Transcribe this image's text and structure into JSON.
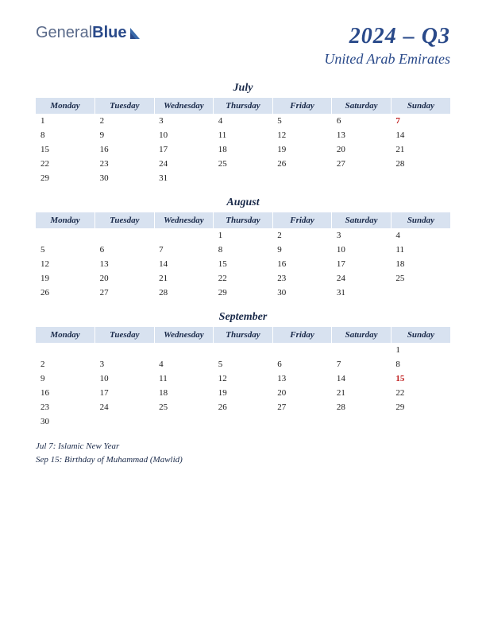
{
  "logo": {
    "part1": "General",
    "part2": "Blue"
  },
  "title": {
    "period": "2024 – Q3",
    "country": "United Arab Emirates"
  },
  "colors": {
    "header_bg": "#d8e2f0",
    "accent": "#2a4a8a",
    "holiday": "#c02020",
    "text": "#1a1a1a",
    "background": "#ffffff"
  },
  "day_headers": [
    "Monday",
    "Tuesday",
    "Wednesday",
    "Thursday",
    "Friday",
    "Saturday",
    "Sunday"
  ],
  "months": [
    {
      "name": "July",
      "weeks": [
        [
          {
            "d": "1"
          },
          {
            "d": "2"
          },
          {
            "d": "3"
          },
          {
            "d": "4"
          },
          {
            "d": "5"
          },
          {
            "d": "6"
          },
          {
            "d": "7",
            "h": true
          }
        ],
        [
          {
            "d": "8"
          },
          {
            "d": "9"
          },
          {
            "d": "10"
          },
          {
            "d": "11"
          },
          {
            "d": "12"
          },
          {
            "d": "13"
          },
          {
            "d": "14"
          }
        ],
        [
          {
            "d": "15"
          },
          {
            "d": "16"
          },
          {
            "d": "17"
          },
          {
            "d": "18"
          },
          {
            "d": "19"
          },
          {
            "d": "20"
          },
          {
            "d": "21"
          }
        ],
        [
          {
            "d": "22"
          },
          {
            "d": "23"
          },
          {
            "d": "24"
          },
          {
            "d": "25"
          },
          {
            "d": "26"
          },
          {
            "d": "27"
          },
          {
            "d": "28"
          }
        ],
        [
          {
            "d": "29"
          },
          {
            "d": "30"
          },
          {
            "d": "31"
          },
          {
            "d": ""
          },
          {
            "d": ""
          },
          {
            "d": ""
          },
          {
            "d": ""
          }
        ]
      ]
    },
    {
      "name": "August",
      "weeks": [
        [
          {
            "d": ""
          },
          {
            "d": ""
          },
          {
            "d": ""
          },
          {
            "d": "1"
          },
          {
            "d": "2"
          },
          {
            "d": "3"
          },
          {
            "d": "4"
          }
        ],
        [
          {
            "d": "5"
          },
          {
            "d": "6"
          },
          {
            "d": "7"
          },
          {
            "d": "8"
          },
          {
            "d": "9"
          },
          {
            "d": "10"
          },
          {
            "d": "11"
          }
        ],
        [
          {
            "d": "12"
          },
          {
            "d": "13"
          },
          {
            "d": "14"
          },
          {
            "d": "15"
          },
          {
            "d": "16"
          },
          {
            "d": "17"
          },
          {
            "d": "18"
          }
        ],
        [
          {
            "d": "19"
          },
          {
            "d": "20"
          },
          {
            "d": "21"
          },
          {
            "d": "22"
          },
          {
            "d": "23"
          },
          {
            "d": "24"
          },
          {
            "d": "25"
          }
        ],
        [
          {
            "d": "26"
          },
          {
            "d": "27"
          },
          {
            "d": "28"
          },
          {
            "d": "29"
          },
          {
            "d": "30"
          },
          {
            "d": "31"
          },
          {
            "d": ""
          }
        ]
      ]
    },
    {
      "name": "September",
      "weeks": [
        [
          {
            "d": ""
          },
          {
            "d": ""
          },
          {
            "d": ""
          },
          {
            "d": ""
          },
          {
            "d": ""
          },
          {
            "d": ""
          },
          {
            "d": "1"
          }
        ],
        [
          {
            "d": "2"
          },
          {
            "d": "3"
          },
          {
            "d": "4"
          },
          {
            "d": "5"
          },
          {
            "d": "6"
          },
          {
            "d": "7"
          },
          {
            "d": "8"
          }
        ],
        [
          {
            "d": "9"
          },
          {
            "d": "10"
          },
          {
            "d": "11"
          },
          {
            "d": "12"
          },
          {
            "d": "13"
          },
          {
            "d": "14"
          },
          {
            "d": "15",
            "h": true
          }
        ],
        [
          {
            "d": "16"
          },
          {
            "d": "17"
          },
          {
            "d": "18"
          },
          {
            "d": "19"
          },
          {
            "d": "20"
          },
          {
            "d": "21"
          },
          {
            "d": "22"
          }
        ],
        [
          {
            "d": "23"
          },
          {
            "d": "24"
          },
          {
            "d": "25"
          },
          {
            "d": "26"
          },
          {
            "d": "27"
          },
          {
            "d": "28"
          },
          {
            "d": "29"
          }
        ],
        [
          {
            "d": "30"
          },
          {
            "d": ""
          },
          {
            "d": ""
          },
          {
            "d": ""
          },
          {
            "d": ""
          },
          {
            "d": ""
          },
          {
            "d": ""
          }
        ]
      ]
    }
  ],
  "holidays": [
    "Jul 7: Islamic New Year",
    "Sep 15: Birthday of Muhammad (Mawlid)"
  ]
}
